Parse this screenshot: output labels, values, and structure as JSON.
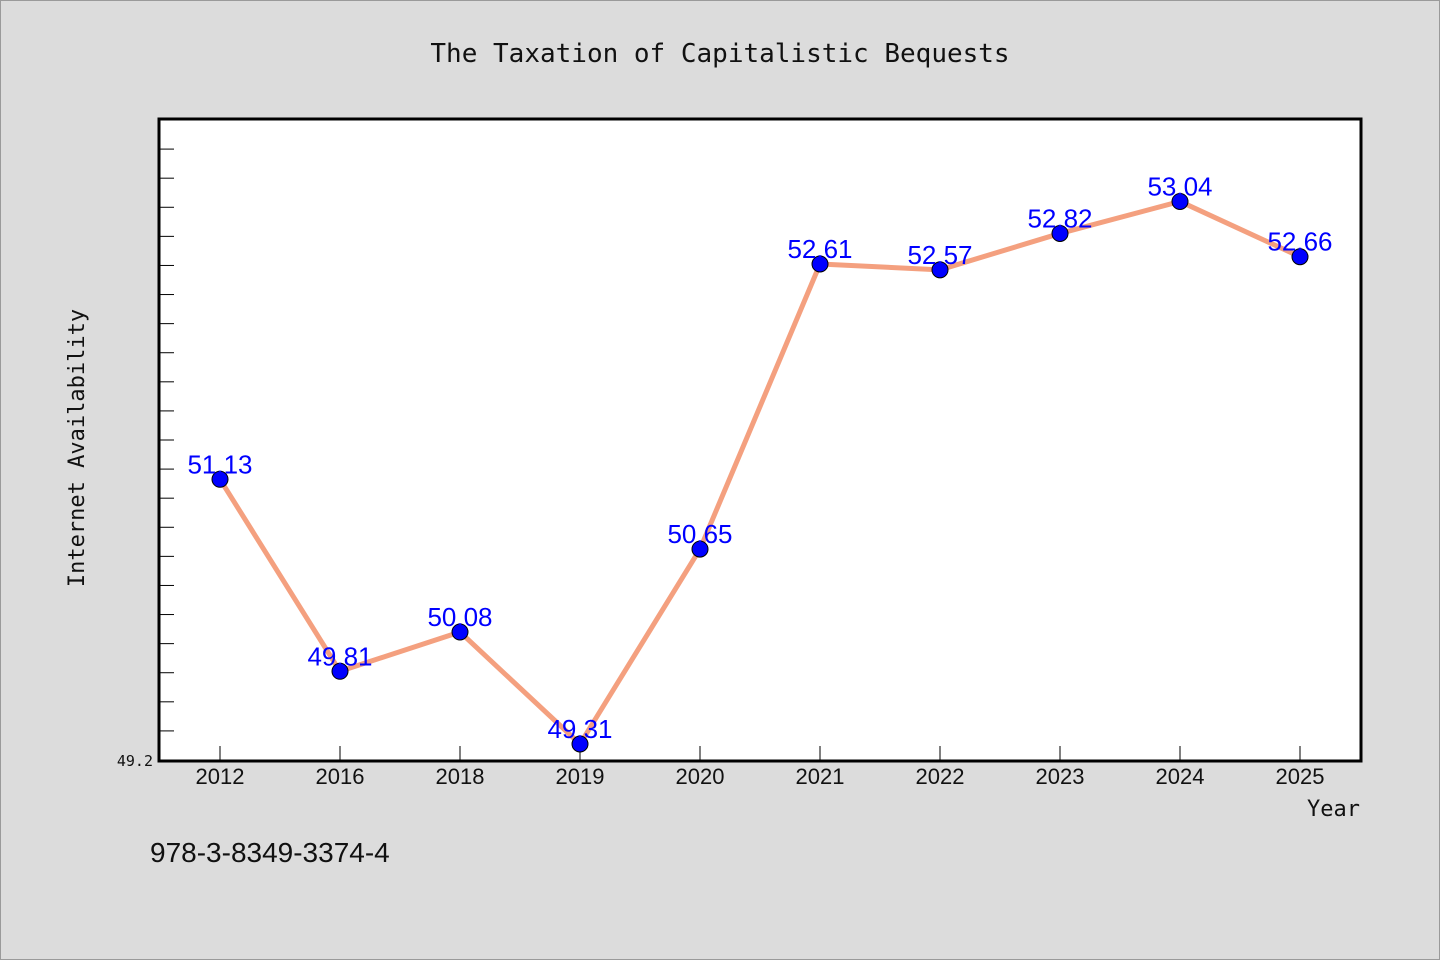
{
  "chart_data": {
    "type": "line",
    "title": "The Taxation of Capitalistic Bequests",
    "xlabel": "Year",
    "ylabel": "Internet Availability",
    "categories": [
      "2012",
      "2016",
      "2018",
      "2019",
      "2020",
      "2021",
      "2022",
      "2023",
      "2024",
      "2025"
    ],
    "series": [
      {
        "values": [
          51.13,
          49.81,
          50.08,
          49.31,
          50.65,
          52.61,
          52.57,
          52.82,
          53.04,
          52.66
        ],
        "line_color": "#f4a07f",
        "marker_color": "#0000ff"
      }
    ],
    "ylim": [
      49.2,
      53.6
    ],
    "yticks_labeled": [
      "49.2"
    ],
    "grid": false,
    "legend": "none"
  },
  "footer": {
    "isbn": "978-3-8349-3374-4"
  }
}
